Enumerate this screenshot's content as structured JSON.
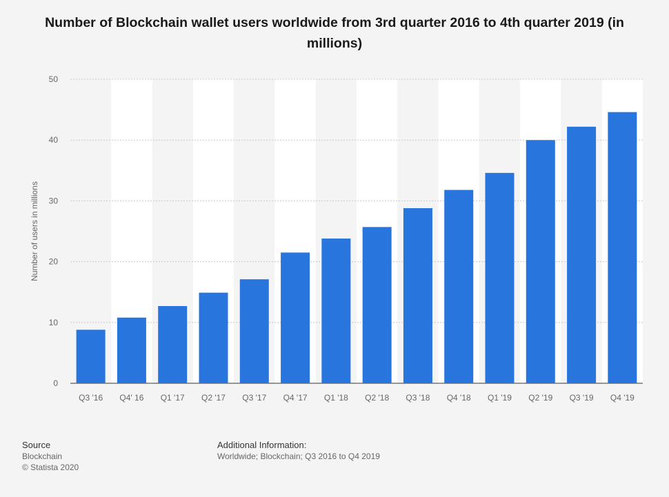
{
  "chart_data": {
    "type": "bar",
    "title": "Number of Blockchain wallet users worldwide from 3rd quarter 2016 to 4th quarter 2019 (in millions)",
    "xlabel": "",
    "ylabel": "Number of users in millions",
    "categories": [
      "Q3 '16",
      "Q4' 16",
      "Q1 '17",
      "Q2 '17",
      "Q3 '17",
      "Q4 '17",
      "Q1 '18",
      "Q2 '18",
      "Q3 '18",
      "Q4 '18",
      "Q1 '19",
      "Q2 '19",
      "Q3 '19",
      "Q4 '19"
    ],
    "values": [
      8.8,
      10.8,
      12.7,
      14.9,
      17.1,
      21.5,
      23.8,
      25.7,
      28.8,
      31.8,
      34.6,
      40.0,
      42.2,
      44.6
    ],
    "ylim": [
      0,
      50
    ],
    "yticks": [
      0,
      10,
      20,
      30,
      40,
      50
    ],
    "grid": true,
    "bar_color": "#2876dd"
  },
  "footer": {
    "source_heading": "Source",
    "source_lines": [
      "Blockchain",
      "© Statista 2020"
    ],
    "info_heading": "Additional Information:",
    "info_lines": [
      "Worldwide; Blockchain; Q3 2016 to Q4 2019"
    ]
  }
}
